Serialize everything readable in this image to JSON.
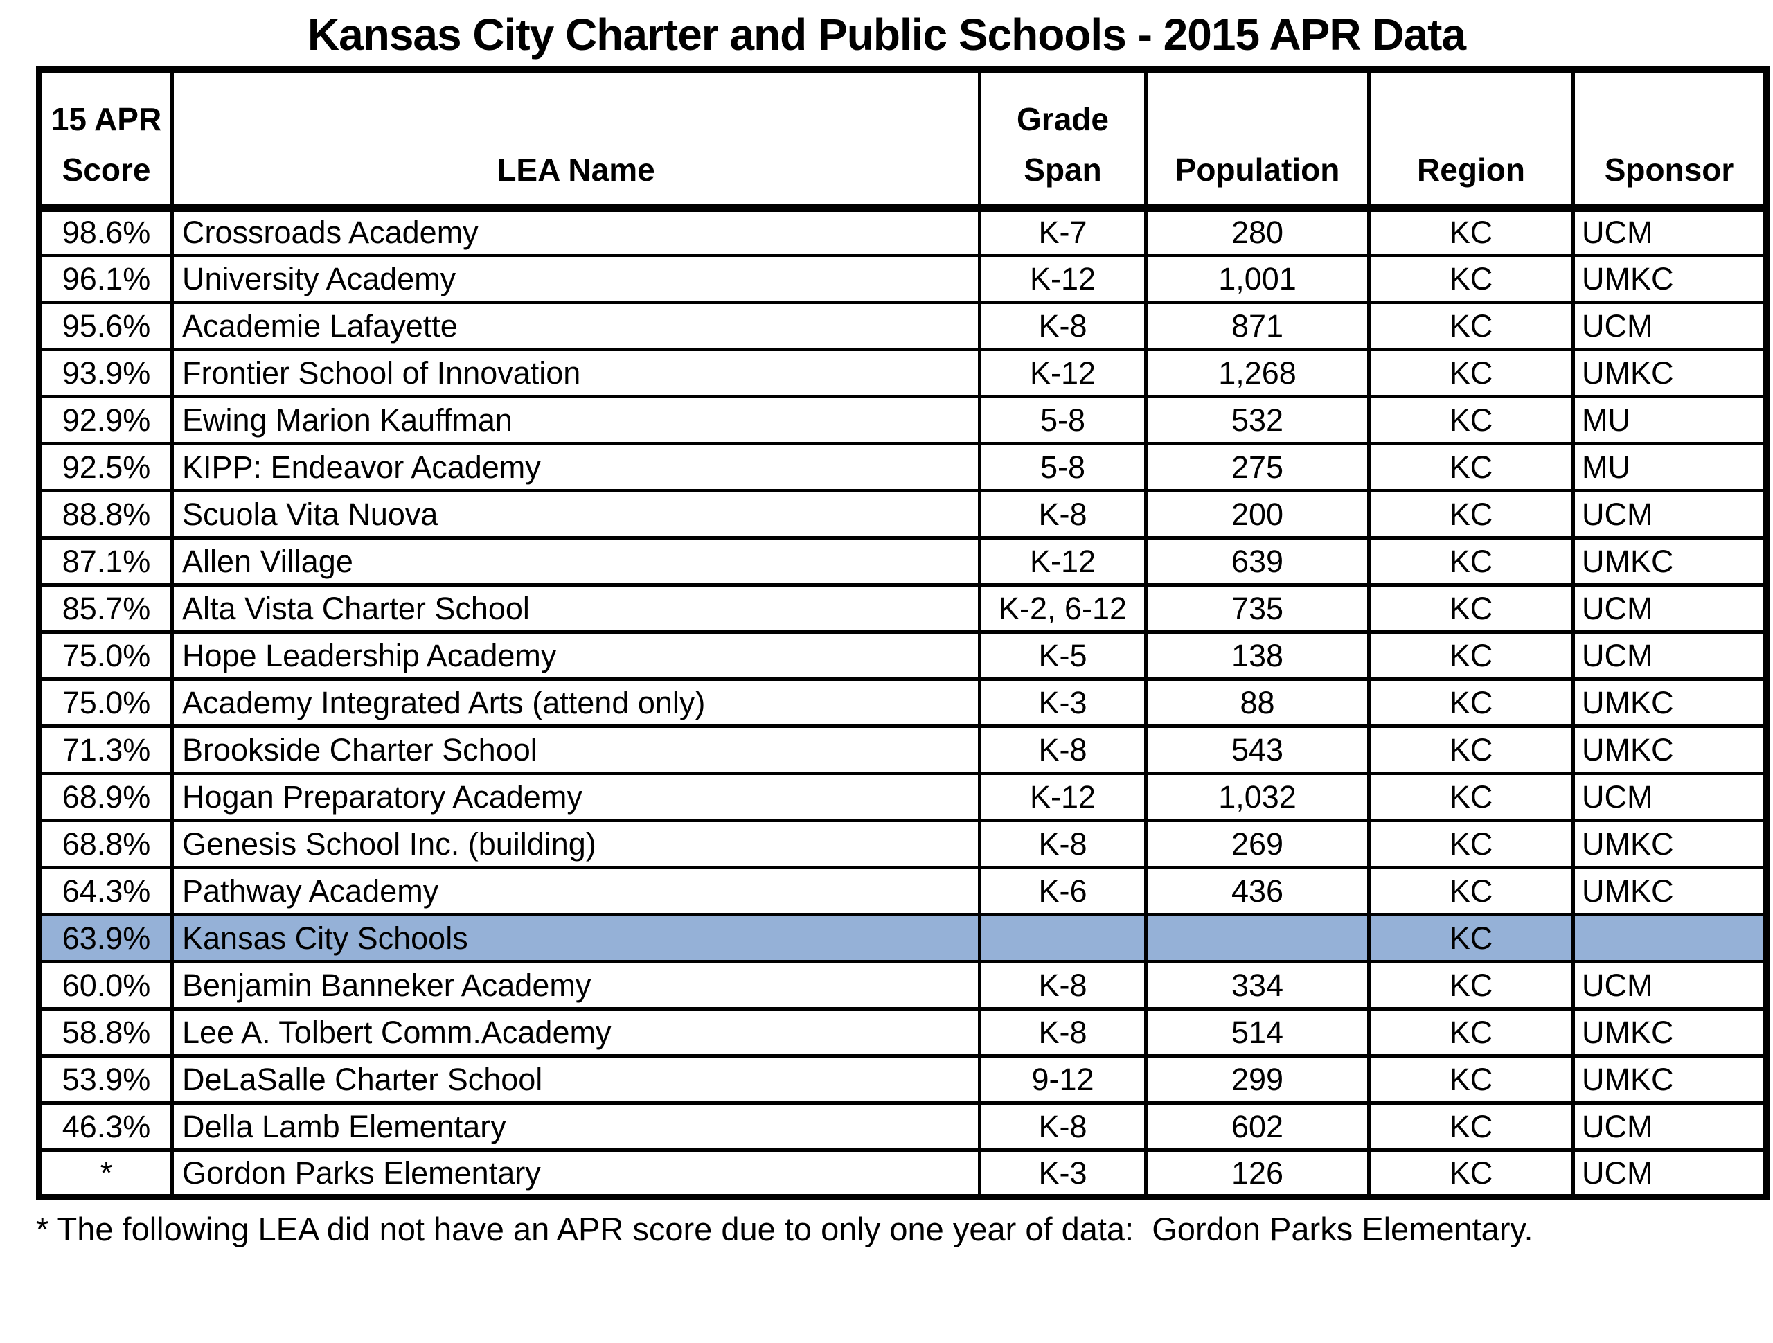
{
  "page": {
    "title": "Kansas City Charter and Public Schools - 2015 APR Data",
    "footnote": "* The following LEA did not have an APR score due to only one year of data:  Gordon Parks Elementary."
  },
  "table": {
    "highlight_color": "#95b1d7",
    "border_color": "#000000",
    "headers": {
      "score": "15 APR\nScore",
      "lea_name": "LEA Name",
      "grade_span": "Grade\nSpan",
      "population": "Population",
      "region": "Region",
      "sponsor": "Sponsor"
    },
    "rows": [
      {
        "score": "98.6%",
        "lea_name": "Crossroads Academy",
        "grade_span": "K-7",
        "population": "280",
        "region": "KC",
        "sponsor": "UCM",
        "highlighted": false
      },
      {
        "score": "96.1%",
        "lea_name": "University Academy",
        "grade_span": "K-12",
        "population": "1,001",
        "region": "KC",
        "sponsor": "UMKC",
        "highlighted": false
      },
      {
        "score": "95.6%",
        "lea_name": "Academie Lafayette",
        "grade_span": "K-8",
        "population": "871",
        "region": "KC",
        "sponsor": "UCM",
        "highlighted": false
      },
      {
        "score": "93.9%",
        "lea_name": "Frontier School of Innovation",
        "grade_span": "K-12",
        "population": "1,268",
        "region": "KC",
        "sponsor": "UMKC",
        "highlighted": false
      },
      {
        "score": "92.9%",
        "lea_name": "Ewing Marion Kauffman",
        "grade_span": "5-8",
        "population": "532",
        "region": "KC",
        "sponsor": "MU",
        "highlighted": false
      },
      {
        "score": "92.5%",
        "lea_name": "KIPP: Endeavor Academy",
        "grade_span": "5-8",
        "population": "275",
        "region": "KC",
        "sponsor": "MU",
        "highlighted": false
      },
      {
        "score": "88.8%",
        "lea_name": "Scuola Vita Nuova",
        "grade_span": "K-8",
        "population": "200",
        "region": "KC",
        "sponsor": "UCM",
        "highlighted": false
      },
      {
        "score": "87.1%",
        "lea_name": "Allen Village",
        "grade_span": "K-12",
        "population": "639",
        "region": "KC",
        "sponsor": "UMKC",
        "highlighted": false
      },
      {
        "score": "85.7%",
        "lea_name": "Alta Vista Charter School",
        "grade_span": "K-2, 6-12",
        "population": "735",
        "region": "KC",
        "sponsor": "UCM",
        "highlighted": false
      },
      {
        "score": "75.0%",
        "lea_name": "Hope Leadership Academy",
        "grade_span": "K-5",
        "population": "138",
        "region": "KC",
        "sponsor": "UCM",
        "highlighted": false
      },
      {
        "score": "75.0%",
        "lea_name": "Academy Integrated Arts (attend only)",
        "grade_span": "K-3",
        "population": "88",
        "region": "KC",
        "sponsor": "UMKC",
        "highlighted": false
      },
      {
        "score": "71.3%",
        "lea_name": "Brookside Charter School",
        "grade_span": "K-8",
        "population": "543",
        "region": "KC",
        "sponsor": "UMKC",
        "highlighted": false
      },
      {
        "score": "68.9%",
        "lea_name": "Hogan Preparatory Academy",
        "grade_span": "K-12",
        "population": "1,032",
        "region": "KC",
        "sponsor": "UCM",
        "highlighted": false
      },
      {
        "score": "68.8%",
        "lea_name": "Genesis School Inc. (building)",
        "grade_span": "K-8",
        "population": "269",
        "region": "KC",
        "sponsor": "UMKC",
        "highlighted": false
      },
      {
        "score": "64.3%",
        "lea_name": "Pathway Academy",
        "grade_span": "K-6",
        "population": "436",
        "region": "KC",
        "sponsor": "UMKC",
        "highlighted": false
      },
      {
        "score": "63.9%",
        "lea_name": "Kansas City Schools",
        "grade_span": "",
        "population": "",
        "region": "KC",
        "sponsor": "",
        "highlighted": true
      },
      {
        "score": "60.0%",
        "lea_name": "Benjamin Banneker Academy",
        "grade_span": "K-8",
        "population": "334",
        "region": "KC",
        "sponsor": "UCM",
        "highlighted": false
      },
      {
        "score": "58.8%",
        "lea_name": "Lee A. Tolbert Comm.Academy",
        "grade_span": "K-8",
        "population": "514",
        "region": "KC",
        "sponsor": "UMKC",
        "highlighted": false
      },
      {
        "score": "53.9%",
        "lea_name": "DeLaSalle Charter School",
        "grade_span": "9-12",
        "population": "299",
        "region": "KC",
        "sponsor": "UMKC",
        "highlighted": false
      },
      {
        "score": "46.3%",
        "lea_name": "Della Lamb Elementary",
        "grade_span": "K-8",
        "population": "602",
        "region": "KC",
        "sponsor": "UCM",
        "highlighted": false
      },
      {
        "score": "*",
        "lea_name": "Gordon Parks Elementary",
        "grade_span": "K-3",
        "population": "126",
        "region": "KC",
        "sponsor": "UCM",
        "highlighted": false
      }
    ]
  }
}
